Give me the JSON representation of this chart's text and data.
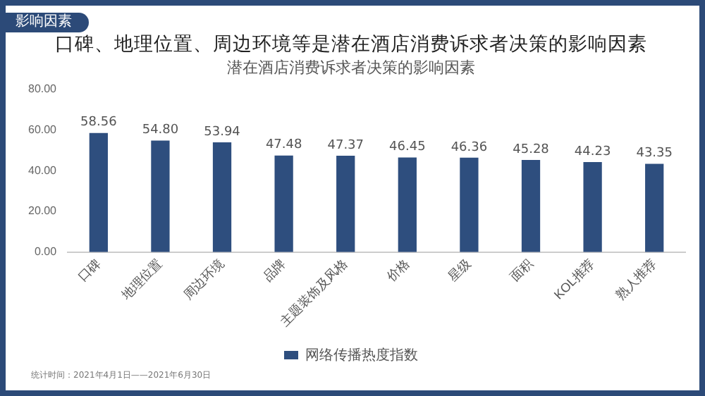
{
  "chart_data": {
    "type": "bar",
    "title": "口碑、地理位置、周边环境等是潜在酒店消费诉求者决策的影响因素",
    "subtitle": "潜在酒店消费诉求者决策的影响因素",
    "categories": [
      "口碑",
      "地理位置",
      "周边环境",
      "品牌",
      "主题装饰及风格",
      "价格",
      "星级",
      "面积",
      "KOL推荐",
      "熟人推荐"
    ],
    "series": [
      {
        "name": "网络传播热度指数",
        "color": "#2e4e7e",
        "values": [
          58.56,
          54.8,
          53.94,
          47.48,
          47.37,
          46.45,
          46.36,
          45.28,
          44.23,
          43.35
        ]
      }
    ],
    "ylim": [
      0,
      80
    ],
    "yticks": [
      {
        "value": 0,
        "label": "0.00"
      },
      {
        "value": 20,
        "label": "20.00"
      },
      {
        "value": 40,
        "label": "40.00"
      },
      {
        "value": 60,
        "label": "60.00"
      },
      {
        "value": 80,
        "label": "80.00"
      }
    ],
    "value_labels": [
      "58.56",
      "54.80",
      "53.94",
      "47.48",
      "47.37",
      "46.45",
      "46.36",
      "45.28",
      "44.23",
      "43.35"
    ],
    "grid": false,
    "legend": "bottom",
    "annotations": [
      "影响因素",
      "统计时间：2021年4月1日——2021年6月30日"
    ]
  }
}
